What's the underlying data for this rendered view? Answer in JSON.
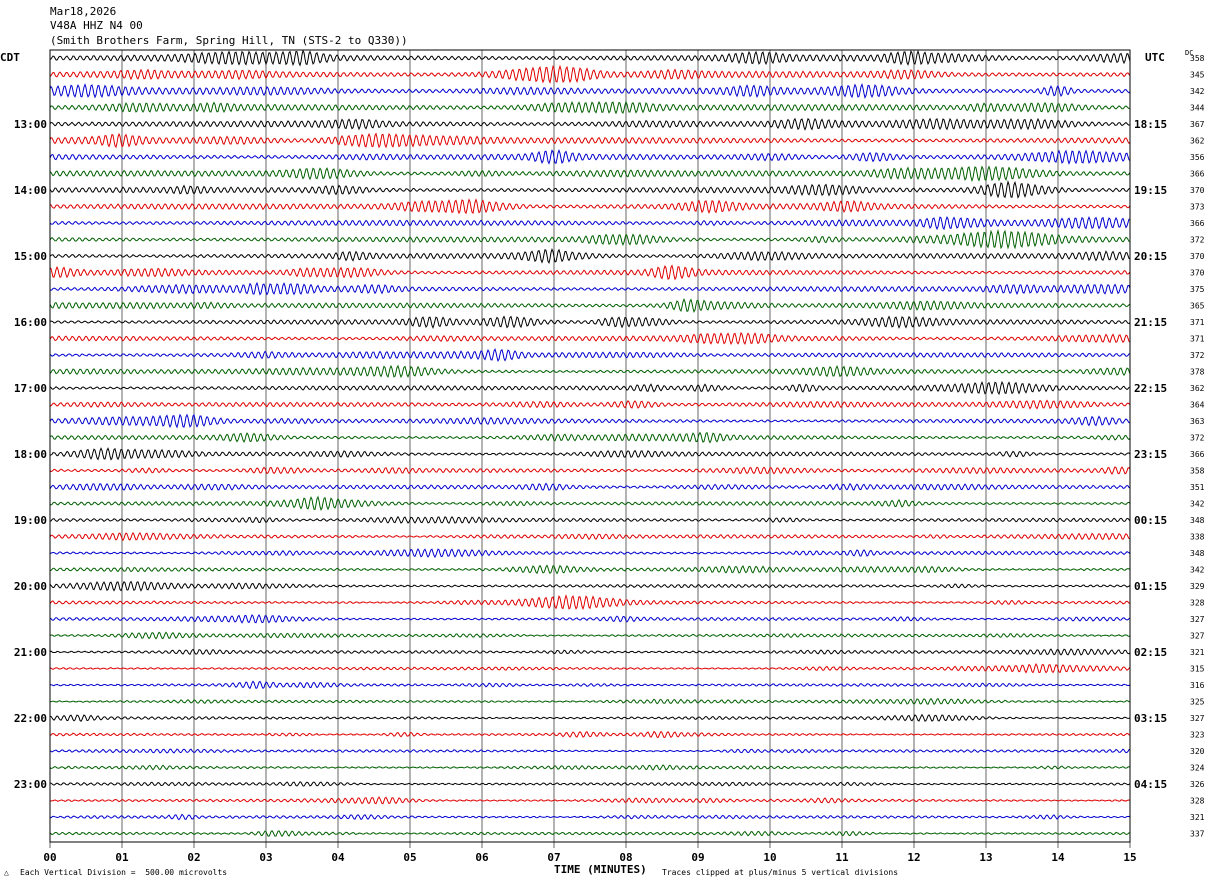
{
  "header": {
    "date": "Mar18,2026",
    "station": "V48A HHZ N4 00",
    "location": "(Smith Brothers Farm, Spring Hill, TN (STS-2 to Q330))"
  },
  "axis_labels": {
    "left_timezone": "CDT",
    "right_timezone": "UTC",
    "dc_label": "DC",
    "xlabel": "TIME (MINUTES)"
  },
  "footer": {
    "scale_note": "Each Vertical Division =  500.00 microvolts",
    "clip_note": "Traces clipped at plus/minus 5 vertical divisions"
  },
  "chart_data": {
    "type": "line",
    "x_ticks": [
      "00",
      "01",
      "02",
      "03",
      "04",
      "05",
      "06",
      "07",
      "08",
      "09",
      "10",
      "11",
      "12",
      "13",
      "14",
      "15"
    ],
    "xlim": [
      0,
      15
    ],
    "grid": "vertical lines at each minute",
    "trace_colors": [
      "#000000",
      "#e00000",
      "#0000d0",
      "#006000"
    ],
    "hour_labels_cdt": [
      "13:00",
      "14:00",
      "15:00",
      "16:00",
      "17:00",
      "18:00",
      "19:00",
      "20:00",
      "21:00",
      "22:00",
      "23:00"
    ],
    "hour_labels_utc": [
      "18:15",
      "19:15",
      "20:15",
      "21:15",
      "22:15",
      "23:15",
      "00:15",
      "01:15",
      "02:15",
      "03:15",
      "04:15"
    ],
    "dc_offsets": [
      358,
      345,
      342,
      344,
      367,
      362,
      356,
      366,
      370,
      373,
      366,
      372,
      370,
      370,
      375,
      365,
      371,
      371,
      372,
      378,
      362,
      364,
      363,
      372,
      366,
      358,
      351,
      342,
      348,
      338,
      348,
      342,
      329,
      328,
      327,
      327,
      321,
      315,
      316,
      325,
      327,
      323,
      320,
      324,
      326,
      328,
      321,
      337
    ]
  }
}
